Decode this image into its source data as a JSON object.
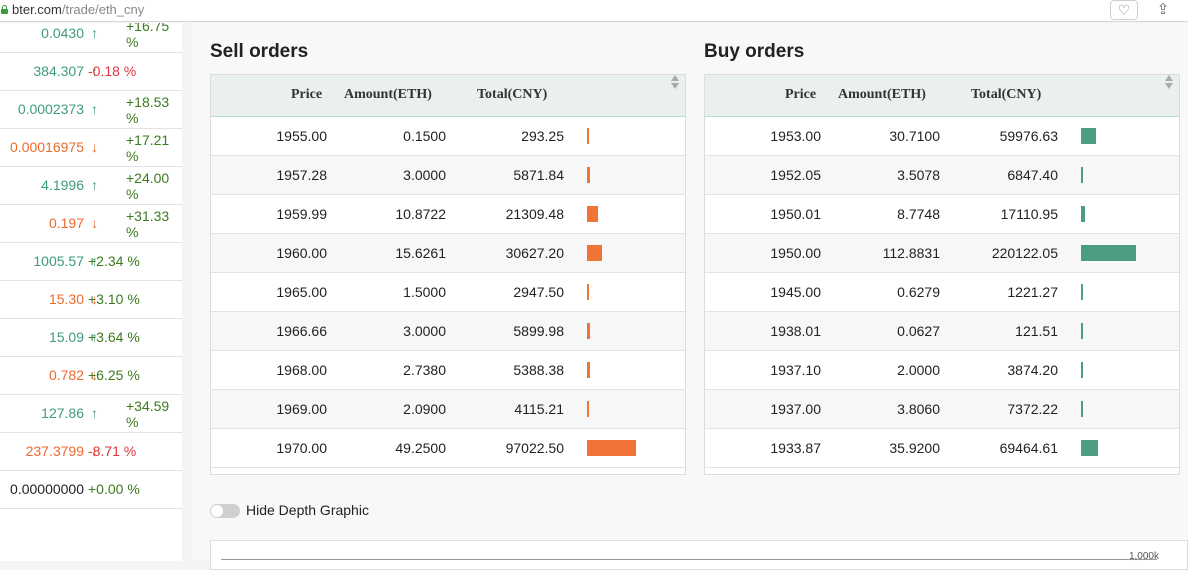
{
  "browser": {
    "url_host": "bter.com",
    "url_path": "/trade/eth_cny"
  },
  "markets": [
    {
      "price": "0.0430",
      "dir": "up",
      "change": "+16.75 %",
      "change_sign": "pos",
      "wrap": true
    },
    {
      "price": "384.307",
      "dir": "up",
      "change": "-0.18 %",
      "change_sign": "neg",
      "wrap": false
    },
    {
      "price": "0.0002373",
      "dir": "up",
      "change": "+18.53 %",
      "change_sign": "pos",
      "wrap": true
    },
    {
      "price": "0.00016975",
      "dir": "down",
      "change": "+17.21 %",
      "change_sign": "pos",
      "wrap": true
    },
    {
      "price": "4.1996",
      "dir": "up",
      "change": "+24.00 %",
      "change_sign": "pos",
      "wrap": true
    },
    {
      "price": "0.197",
      "dir": "down",
      "change": "+31.33 %",
      "change_sign": "pos",
      "wrap": true
    },
    {
      "price": "1005.57",
      "dir": "up",
      "change": "+2.34 %",
      "change_sign": "pos",
      "wrap": false
    },
    {
      "price": "15.30",
      "dir": "down",
      "change": "+3.10 %",
      "change_sign": "pos",
      "wrap": false
    },
    {
      "price": "15.09",
      "dir": "up",
      "change": "+3.64 %",
      "change_sign": "pos",
      "wrap": false
    },
    {
      "price": "0.782",
      "dir": "down",
      "change": "+6.25 %",
      "change_sign": "pos",
      "wrap": false
    },
    {
      "price": "127.86",
      "dir": "up",
      "change": "+34.59 %",
      "change_sign": "pos",
      "wrap": true
    },
    {
      "price": "237.3799",
      "dir": "down",
      "change": "-8.71 %",
      "change_sign": "neg",
      "wrap": false
    },
    {
      "price": "0.00000000",
      "dir": "none",
      "change": "+0.00 %",
      "change_sign": "pos",
      "wrap": false
    }
  ],
  "arrows": {
    "up": "↑",
    "down": "↓",
    "none": ""
  },
  "sell": {
    "title": "Sell orders",
    "columns": {
      "price": "Price",
      "amount": "Amount(ETH)",
      "total": "Total(CNY)"
    },
    "rows": [
      {
        "price": "1955.00",
        "amount": "0.1500",
        "total": "293.25",
        "depth": 293.25
      },
      {
        "price": "1957.28",
        "amount": "3.0000",
        "total": "5871.84",
        "depth": 5871.84
      },
      {
        "price": "1959.99",
        "amount": "10.8722",
        "total": "21309.48",
        "depth": 21309.48
      },
      {
        "price": "1960.00",
        "amount": "15.6261",
        "total": "30627.20",
        "depth": 30627.2
      },
      {
        "price": "1965.00",
        "amount": "1.5000",
        "total": "2947.50",
        "depth": 2947.5
      },
      {
        "price": "1966.66",
        "amount": "3.0000",
        "total": "5899.98",
        "depth": 5899.98
      },
      {
        "price": "1968.00",
        "amount": "2.7380",
        "total": "5388.38",
        "depth": 5388.38
      },
      {
        "price": "1969.00",
        "amount": "2.0900",
        "total": "4115.21",
        "depth": 4115.21
      },
      {
        "price": "1970.00",
        "amount": "49.2500",
        "total": "97022.50",
        "depth": 97022.5
      }
    ]
  },
  "buy": {
    "title": "Buy orders",
    "columns": {
      "price": "Price",
      "amount": "Amount(ETH)",
      "total": "Total(CNY)"
    },
    "rows": [
      {
        "price": "1953.00",
        "amount": "30.7100",
        "total": "59976.63",
        "depth": 59976.63
      },
      {
        "price": "1952.05",
        "amount": "3.5078",
        "total": "6847.40",
        "depth": 6847.4
      },
      {
        "price": "1950.01",
        "amount": "8.7748",
        "total": "17110.95",
        "depth": 17110.95
      },
      {
        "price": "1950.00",
        "amount": "112.8831",
        "total": "220122.05",
        "depth": 220122.05
      },
      {
        "price": "1945.00",
        "amount": "0.6279",
        "total": "1221.27",
        "depth": 1221.27
      },
      {
        "price": "1938.01",
        "amount": "0.0627",
        "total": "121.51",
        "depth": 121.51
      },
      {
        "price": "1937.10",
        "amount": "2.0000",
        "total": "3874.20",
        "depth": 3874.2
      },
      {
        "price": "1937.00",
        "amount": "3.8060",
        "total": "7372.22",
        "depth": 7372.22
      },
      {
        "price": "1933.87",
        "amount": "35.9200",
        "total": "69464.61",
        "depth": 69464.61
      }
    ]
  },
  "depth_toggle": {
    "label": "Hide Depth Graphic",
    "on": false
  },
  "chart": {
    "tick": "1,000k"
  },
  "colors": {
    "sell_bar": "#f07436",
    "buy_bar": "#4b9e84"
  }
}
